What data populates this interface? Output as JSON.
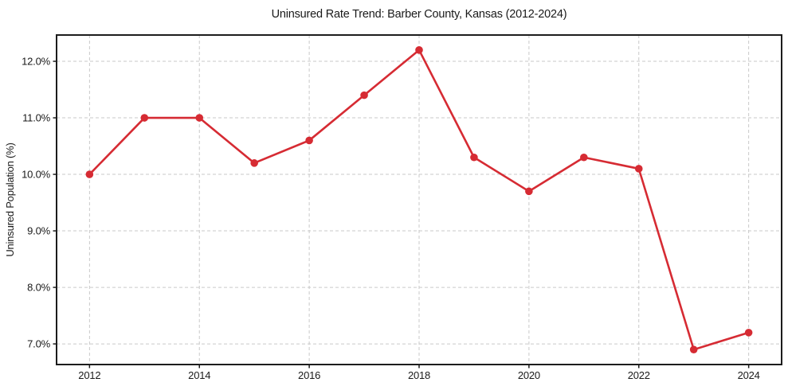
{
  "figure": {
    "background": "#ffffff"
  },
  "chart_data": {
    "type": "line",
    "title": "Uninsured Rate Trend: Barber County, Kansas (2012-2024)",
    "xlabel": "",
    "ylabel": "Uninsured Population (%)",
    "x": [
      2012,
      2013,
      2014,
      2015,
      2016,
      2017,
      2018,
      2019,
      2020,
      2021,
      2022,
      2023,
      2024
    ],
    "values": [
      10.0,
      11.0,
      11.0,
      10.2,
      10.6,
      11.4,
      12.2,
      10.3,
      9.7,
      10.3,
      10.1,
      6.9,
      7.2
    ],
    "xticks": {
      "values": [
        2012,
        2014,
        2016,
        2018,
        2020,
        2022,
        2024
      ],
      "labels": [
        "2012",
        "2014",
        "2016",
        "2018",
        "2020",
        "2022",
        "2024"
      ]
    },
    "yticks": {
      "values": [
        7.0,
        8.0,
        9.0,
        10.0,
        11.0,
        12.0
      ],
      "labels": [
        "7.0%",
        "8.0%",
        "9.0%",
        "10.0%",
        "11.0%",
        "12.0%"
      ]
    },
    "xlim": [
      2011.4,
      2024.6
    ],
    "ylim": [
      6.635,
      12.465
    ],
    "grid": true,
    "grid_style": "dashed",
    "legend": null,
    "line_color": "#d62b33",
    "marker": "circle",
    "marker_color": "#d62b33",
    "grid_color": "#c9c9c9",
    "axis_color": "#1c1c1c",
    "text_color": "#1a1a1a"
  }
}
